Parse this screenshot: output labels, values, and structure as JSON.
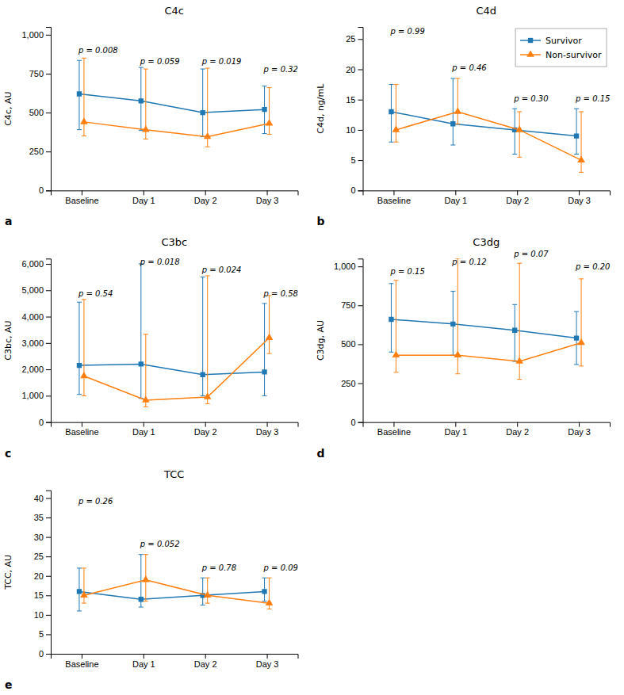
{
  "chart_data": [
    {
      "type": "line",
      "title": "C4c",
      "y_label": "C4c, AU",
      "panel_label": "a",
      "categories": [
        "Baseline",
        "Day 1",
        "Day 2",
        "Day 3"
      ],
      "ylim": [
        0,
        1050
      ],
      "yticks": [
        0,
        250,
        500,
        750,
        {
          "value": 1000,
          "label": "1,000"
        }
      ],
      "series": [
        {
          "name": "Survivor",
          "marker": "square",
          "values": [
            620,
            575,
            500,
            520
          ],
          "error_low": [
            230,
            190,
            155,
            155
          ],
          "error_high": [
            215,
            215,
            280,
            150
          ]
        },
        {
          "name": "Non-survivor",
          "marker": "triangle",
          "values": [
            440,
            390,
            345,
            430
          ],
          "error_low": [
            90,
            60,
            65,
            70
          ],
          "error_high": [
            410,
            390,
            440,
            230
          ]
        }
      ],
      "annotations": [
        {
          "text": "p = 0.008",
          "x": "Baseline",
          "y": 870
        },
        {
          "text": "p = 0.059",
          "x": "Day 1",
          "y": 800
        },
        {
          "text": "p = 0.019",
          "x": "Day 2",
          "y": 800
        },
        {
          "text": "p = 0.32",
          "x": "Day 3",
          "y": 750
        }
      ]
    },
    {
      "type": "line",
      "title": "C4d",
      "y_label": "C4d, ng/mL",
      "panel_label": "b",
      "categories": [
        "Baseline",
        "Day 1",
        "Day 2",
        "Day 3"
      ],
      "ylim": [
        0,
        27
      ],
      "yticks": [
        0,
        5,
        10,
        15,
        20,
        25
      ],
      "legend": "upper right",
      "series": [
        {
          "name": "Survivor",
          "marker": "square",
          "values": [
            13.0,
            11.0,
            10.0,
            9.0
          ],
          "error_low": [
            5.0,
            3.5,
            4.0,
            3.0
          ],
          "error_high": [
            4.5,
            7.5,
            3.5,
            4.5
          ]
        },
        {
          "name": "Non-survivor",
          "marker": "triangle",
          "values": [
            10.0,
            13.0,
            10.0,
            5.0
          ],
          "error_low": [
            2.0,
            2.0,
            4.5,
            2.0
          ],
          "error_high": [
            7.5,
            5.5,
            3.0,
            8.0
          ]
        }
      ],
      "annotations": [
        {
          "text": "p = 0.99",
          "x": "Baseline",
          "y": 25.5
        },
        {
          "text": "p = 0.46",
          "x": "Day 1",
          "y": 19.5
        },
        {
          "text": "p = 0.30",
          "x": "Day 2",
          "y": 14.5
        },
        {
          "text": "p = 0.15",
          "x": "Day 3",
          "y": 14.5
        }
      ]
    },
    {
      "type": "line",
      "title": "C3bc",
      "y_label": "C3bc, AU",
      "panel_label": "c",
      "categories": [
        "Baseline",
        "Day 1",
        "Day 2",
        "Day 3"
      ],
      "ylim": [
        0,
        6200
      ],
      "yticks": [
        0,
        {
          "value": 1000,
          "label": "1,000"
        },
        {
          "value": 2000,
          "label": "2,000"
        },
        {
          "value": 3000,
          "label": "3,000"
        },
        {
          "value": 4000,
          "label": "4,000"
        },
        {
          "value": 5000,
          "label": "5,000"
        },
        {
          "value": 6000,
          "label": "6,000"
        }
      ],
      "series": [
        {
          "name": "Survivor",
          "marker": "square",
          "values": [
            2150,
            2200,
            1800,
            1900
          ],
          "error_low": [
            1100,
            1300,
            800,
            900
          ],
          "error_high": [
            2400,
            3800,
            3700,
            2600
          ]
        },
        {
          "name": "Non-survivor",
          "marker": "triangle",
          "values": [
            1750,
            830,
            950,
            3200
          ],
          "error_low": [
            750,
            250,
            250,
            600
          ],
          "error_high": [
            2900,
            2500,
            4600,
            1600
          ]
        }
      ],
      "annotations": [
        {
          "text": "p = 0.54",
          "x": "Baseline",
          "y": 4700
        },
        {
          "text": "p = 0.018",
          "x": "Day 1",
          "y": 5900
        },
        {
          "text": "p = 0.024",
          "x": "Day 2",
          "y": 5600
        },
        {
          "text": "p = 0.58",
          "x": "Day 3",
          "y": 4700
        }
      ]
    },
    {
      "type": "line",
      "title": "C3dg",
      "y_label": "C3dg, AU",
      "panel_label": "d",
      "categories": [
        "Baseline",
        "Day 1",
        "Day 2",
        "Day 3"
      ],
      "ylim": [
        0,
        1050
      ],
      "yticks": [
        0,
        250,
        500,
        750,
        {
          "value": 1000,
          "label": "1,000"
        }
      ],
      "series": [
        {
          "name": "Survivor",
          "marker": "square",
          "values": [
            660,
            630,
            590,
            540
          ],
          "error_low": [
            210,
            200,
            200,
            170
          ],
          "error_high": [
            230,
            210,
            165,
            170
          ]
        },
        {
          "name": "Non-survivor",
          "marker": "triangle",
          "values": [
            430,
            430,
            390,
            510
          ],
          "error_low": [
            110,
            120,
            115,
            150
          ],
          "error_high": [
            480,
            620,
            630,
            410
          ]
        }
      ],
      "annotations": [
        {
          "text": "p = 0.15",
          "x": "Baseline",
          "y": 940
        },
        {
          "text": "p = 0.12",
          "x": "Day 1",
          "y": 1000
        },
        {
          "text": "p = 0.07",
          "x": "Day 2",
          "y": 1050
        },
        {
          "text": "p = 0.20",
          "x": "Day 3",
          "y": 970
        }
      ]
    },
    {
      "type": "line",
      "title": "TCC",
      "y_label": "TCC, AU",
      "panel_label": "e",
      "categories": [
        "Baseline",
        "Day 1",
        "Day 2",
        "Day 3"
      ],
      "ylim": [
        0,
        42
      ],
      "yticks": [
        0,
        5,
        10,
        15,
        20,
        25,
        30,
        35,
        40
      ],
      "series": [
        {
          "name": "Survivor",
          "marker": "square",
          "values": [
            16.0,
            14.0,
            15.0,
            16.0
          ],
          "error_low": [
            5.0,
            2.0,
            2.5,
            2.5
          ],
          "error_high": [
            6.0,
            11.5,
            4.5,
            3.5
          ]
        },
        {
          "name": "Non-survivor",
          "marker": "triangle",
          "values": [
            15.0,
            19.0,
            15.0,
            13.0
          ],
          "error_low": [
            2.0,
            5.5,
            2.0,
            1.5
          ],
          "error_high": [
            7.0,
            6.5,
            4.5,
            6.5
          ]
        }
      ],
      "annotations": [
        {
          "text": "p = 0.26",
          "x": "Baseline",
          "y": 38.0
        },
        {
          "text": "p = 0.052",
          "x": "Day 1",
          "y": 27.0
        },
        {
          "text": "p = 0.78",
          "x": "Day 2",
          "y": 21.0
        },
        {
          "text": "p = 0.09",
          "x": "Day 3",
          "y": 21.0
        }
      ]
    }
  ]
}
